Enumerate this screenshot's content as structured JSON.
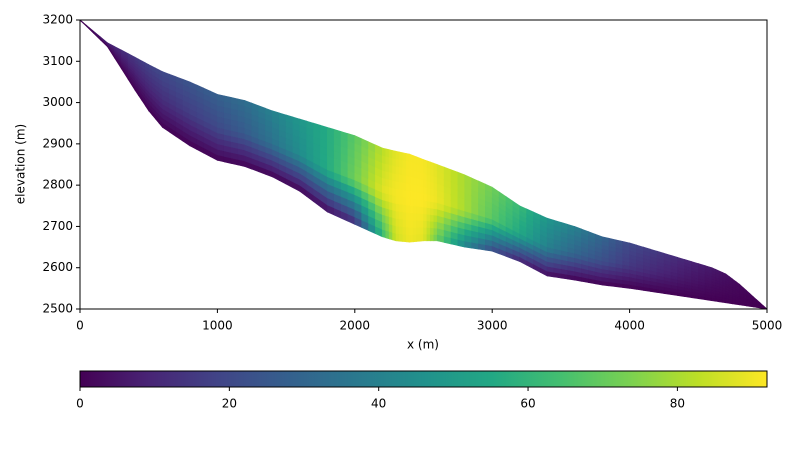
{
  "chart_data": {
    "type": "field",
    "xlabel": "x (m)",
    "ylabel": "elevation (m)",
    "x": [
      0,
      200,
      400,
      500,
      600,
      800,
      1000,
      1200,
      1400,
      1600,
      1800,
      2000,
      2200,
      2300,
      2400,
      2500,
      2600,
      2800,
      3000,
      3200,
      3400,
      3600,
      3800,
      4000,
      4200,
      4400,
      4600,
      4700,
      4800,
      4900,
      5000
    ],
    "surface": [
      3200,
      3145,
      3110,
      3092,
      3075,
      3050,
      3020,
      3005,
      2980,
      2960,
      2940,
      2920,
      2890,
      2882,
      2875,
      2862,
      2850,
      2825,
      2795,
      2750,
      2720,
      2700,
      2675,
      2660,
      2640,
      2620,
      2600,
      2585,
      2560,
      2530,
      2500
    ],
    "bed": [
      3200,
      3135,
      3030,
      2980,
      2940,
      2895,
      2860,
      2845,
      2820,
      2785,
      2735,
      2705,
      2675,
      2665,
      2662,
      2665,
      2665,
      2650,
      2640,
      2615,
      2580,
      2570,
      2558,
      2550,
      2540,
      2530,
      2520,
      2515,
      2510,
      2505,
      2500
    ],
    "values_bed": [
      0,
      0,
      0,
      0,
      0,
      0,
      0,
      0,
      0,
      0,
      2,
      10,
      60,
      85,
      90,
      88,
      70,
      40,
      20,
      8,
      2,
      0,
      0,
      0,
      0,
      0,
      0,
      0,
      0,
      0,
      0
    ],
    "values_mid": [
      0,
      4,
      8,
      10,
      12,
      16,
      20,
      26,
      34,
      44,
      56,
      72,
      88,
      91,
      92,
      92,
      90,
      80,
      68,
      55,
      40,
      30,
      22,
      15,
      10,
      6,
      3,
      2,
      1,
      0,
      0
    ],
    "values_surface": [
      0,
      8,
      15,
      18,
      20,
      24,
      28,
      33,
      40,
      48,
      56,
      68,
      82,
      88,
      91,
      91,
      88,
      80,
      72,
      62,
      48,
      40,
      30,
      20,
      15,
      10,
      6,
      4,
      2,
      1,
      0
    ],
    "xlim": [
      0,
      5000
    ],
    "xticks": [
      0,
      1000,
      2000,
      3000,
      4000,
      5000
    ],
    "ylim": [
      2500,
      3200
    ],
    "yticks": [
      2500,
      2600,
      2700,
      2800,
      2900,
      3000,
      3100,
      3200
    ],
    "colormap": "viridis",
    "clim": [
      0,
      92
    ],
    "cticks": [
      0,
      20,
      40,
      60,
      80
    ]
  }
}
